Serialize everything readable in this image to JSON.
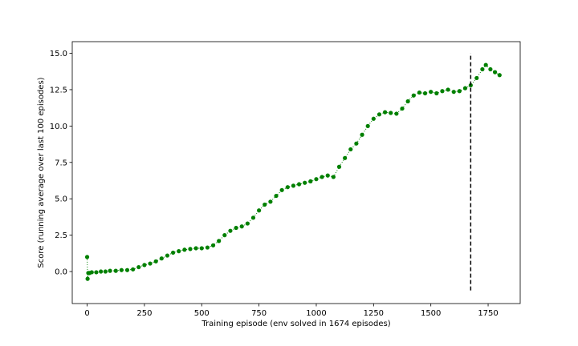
{
  "chart_data": {
    "type": "line",
    "title": "",
    "xlabel": "Training episode (env solved in 1674 episodes)",
    "ylabel": "Score (running average over last 100 episodes)",
    "xlim": [
      -65,
      1890
    ],
    "ylim": [
      -2.2,
      15.8
    ],
    "xticks": [
      0,
      250,
      500,
      750,
      1000,
      1250,
      1500,
      1750
    ],
    "xtick_labels": [
      "0",
      "250",
      "500",
      "750",
      "1000",
      "1250",
      "1500",
      "1750"
    ],
    "yticks": [
      0.0,
      2.5,
      5.0,
      7.5,
      10.0,
      12.5,
      15.0
    ],
    "ytick_labels": [
      "0.0",
      "2.5",
      "5.0",
      "7.5",
      "10.0",
      "12.5",
      "15.0"
    ],
    "grid": false,
    "series": [
      {
        "color": "#008000",
        "marker": "circle",
        "x": [
          0,
          2,
          5,
          10,
          20,
          40,
          60,
          80,
          100,
          125,
          150,
          175,
          200,
          225,
          250,
          275,
          300,
          325,
          350,
          375,
          400,
          425,
          450,
          475,
          500,
          525,
          550,
          575,
          600,
          625,
          650,
          675,
          700,
          725,
          750,
          775,
          800,
          825,
          850,
          875,
          900,
          925,
          950,
          975,
          1000,
          1025,
          1050,
          1075,
          1100,
          1125,
          1150,
          1175,
          1200,
          1225,
          1250,
          1275,
          1300,
          1325,
          1350,
          1375,
          1400,
          1425,
          1450,
          1475,
          1500,
          1525,
          1550,
          1575,
          1600,
          1625,
          1650,
          1674,
          1700,
          1725,
          1740,
          1760,
          1780,
          1800
        ],
        "y": [
          1.0,
          -0.5,
          -0.1,
          -0.1,
          -0.05,
          -0.05,
          0.0,
          0.0,
          0.05,
          0.05,
          0.1,
          0.1,
          0.15,
          0.3,
          0.45,
          0.55,
          0.7,
          0.9,
          1.1,
          1.3,
          1.4,
          1.5,
          1.55,
          1.6,
          1.6,
          1.65,
          1.8,
          2.1,
          2.5,
          2.8,
          3.0,
          3.1,
          3.3,
          3.7,
          4.2,
          4.6,
          4.8,
          5.2,
          5.6,
          5.8,
          5.9,
          6.0,
          6.1,
          6.2,
          6.35,
          6.5,
          6.6,
          6.5,
          7.2,
          7.8,
          8.4,
          8.8,
          9.4,
          10.0,
          10.5,
          10.8,
          10.95,
          10.9,
          10.85,
          11.2,
          11.7,
          12.1,
          12.3,
          12.25,
          12.35,
          12.25,
          12.4,
          12.5,
          12.35,
          12.4,
          12.6,
          12.8,
          13.3,
          13.9,
          14.2,
          13.9,
          13.7,
          13.5
        ]
      }
    ],
    "vline": {
      "x": 1674,
      "y_from": -1.3,
      "y_to": 15.0,
      "style": "dashed",
      "color": "#000000"
    }
  }
}
